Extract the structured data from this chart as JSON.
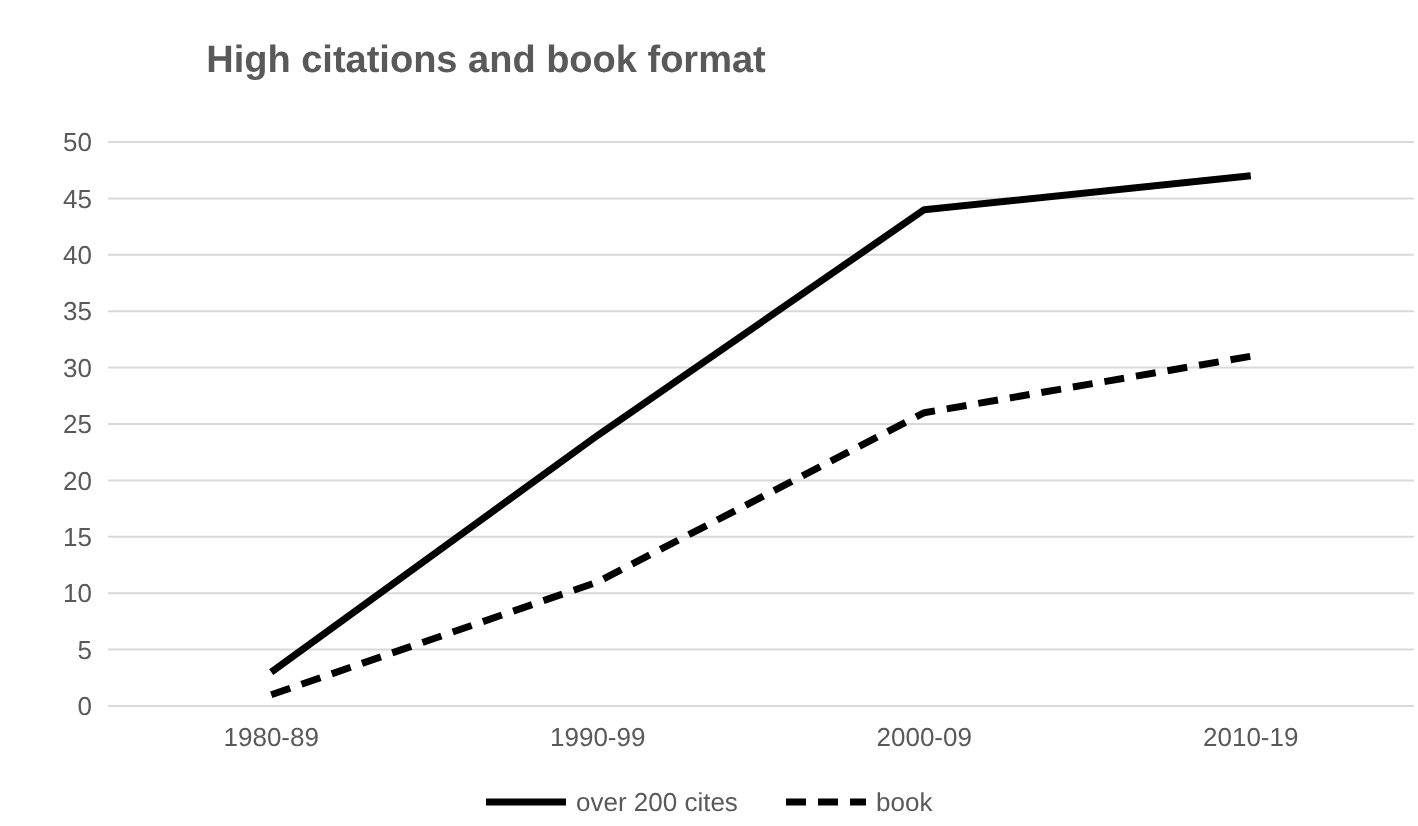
{
  "chart_data": {
    "type": "line",
    "title": "High citations and book format",
    "categories": [
      "1980-89",
      "1990-99",
      "2000-09",
      "2010-19"
    ],
    "series": [
      {
        "name": "over 200 cites",
        "color": "#000000",
        "line_style": "solid",
        "values": [
          3,
          24,
          44,
          47
        ]
      },
      {
        "name": "book",
        "color": "#000000",
        "line_style": "dashed",
        "values": [
          1,
          11,
          26,
          31
        ]
      }
    ],
    "ylim": [
      0,
      50
    ],
    "yticks": [
      0,
      5,
      10,
      15,
      20,
      25,
      30,
      35,
      40,
      45,
      50
    ],
    "grid": "y",
    "legend": "bottom",
    "marker": "none"
  }
}
